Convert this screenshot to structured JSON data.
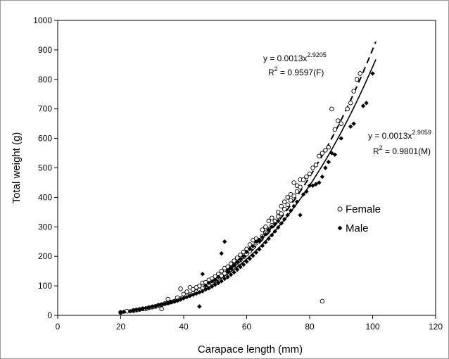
{
  "chart_data": {
    "type": "scatter",
    "title": "",
    "xlabel": "Carapace length (mm)",
    "ylabel": "Total weight (g)",
    "xlim": [
      0,
      120
    ],
    "ylim": [
      0,
      1000
    ],
    "xticks": [
      0,
      20,
      40,
      60,
      80,
      100,
      120
    ],
    "yticks": [
      0,
      100,
      200,
      300,
      400,
      500,
      600,
      700,
      800,
      900,
      1000
    ],
    "grid": false,
    "legend_position": "right",
    "series": [
      {
        "name": "Female",
        "marker": "open-circle",
        "color": "#000000",
        "trendline": {
          "a": 0.0013,
          "b": 2.9205,
          "style": "dashed"
        },
        "points": [
          [
            20,
            10
          ],
          [
            22,
            14
          ],
          [
            24,
            16
          ],
          [
            25,
            18
          ],
          [
            26,
            20
          ],
          [
            27,
            22
          ],
          [
            28,
            22
          ],
          [
            29,
            26
          ],
          [
            30,
            28
          ],
          [
            31,
            30
          ],
          [
            32,
            34
          ],
          [
            33,
            36
          ],
          [
            33,
            22
          ],
          [
            34,
            40
          ],
          [
            35,
            42
          ],
          [
            35,
            55
          ],
          [
            36,
            45
          ],
          [
            37,
            48
          ],
          [
            38,
            52
          ],
          [
            38,
            60
          ],
          [
            39,
            56
          ],
          [
            39,
            90
          ],
          [
            40,
            62
          ],
          [
            40,
            72
          ],
          [
            41,
            66
          ],
          [
            41,
            80
          ],
          [
            42,
            70
          ],
          [
            42,
            95
          ],
          [
            43,
            74
          ],
          [
            43,
            88
          ],
          [
            44,
            80
          ],
          [
            44,
            95
          ],
          [
            45,
            86
          ],
          [
            45,
            100
          ],
          [
            46,
            92
          ],
          [
            46,
            110
          ],
          [
            47,
            98
          ],
          [
            47,
            112
          ],
          [
            48,
            104
          ],
          [
            48,
            120
          ],
          [
            49,
            110
          ],
          [
            49,
            125
          ],
          [
            50,
            118
          ],
          [
            50,
            132
          ],
          [
            51,
            126
          ],
          [
            51,
            140
          ],
          [
            52,
            134
          ],
          [
            52,
            150
          ],
          [
            53,
            142
          ],
          [
            53,
            160
          ],
          [
            54,
            150
          ],
          [
            54,
            165
          ],
          [
            55,
            160
          ],
          [
            55,
            175
          ],
          [
            56,
            170
          ],
          [
            56,
            185
          ],
          [
            57,
            178
          ],
          [
            57,
            195
          ],
          [
            58,
            188
          ],
          [
            58,
            205
          ],
          [
            59,
            198
          ],
          [
            59,
            215
          ],
          [
            60,
            208
          ],
          [
            60,
            225
          ],
          [
            61,
            218
          ],
          [
            61,
            240
          ],
          [
            62,
            230
          ],
          [
            62,
            255
          ],
          [
            63,
            245
          ],
          [
            63,
            260
          ],
          [
            64,
            255
          ],
          [
            65,
            268
          ],
          [
            65,
            290
          ],
          [
            66,
            280
          ],
          [
            66,
            300
          ],
          [
            67,
            292
          ],
          [
            67,
            320
          ],
          [
            68,
            305
          ],
          [
            68,
            330
          ],
          [
            69,
            320
          ],
          [
            70,
            335
          ],
          [
            70,
            350
          ],
          [
            71,
            345
          ],
          [
            71,
            370
          ],
          [
            72,
            360
          ],
          [
            72,
            385
          ],
          [
            73,
            375
          ],
          [
            73,
            400
          ],
          [
            74,
            390
          ],
          [
            74,
            410
          ],
          [
            75,
            405
          ],
          [
            75,
            450
          ],
          [
            76,
            420
          ],
          [
            76,
            440
          ],
          [
            77,
            435
          ],
          [
            77,
            460
          ],
          [
            78,
            460
          ],
          [
            79,
            470
          ],
          [
            80,
            480
          ],
          [
            81,
            500
          ],
          [
            82,
            510
          ],
          [
            83,
            540
          ],
          [
            84,
            550
          ],
          [
            85,
            560
          ],
          [
            86,
            570
          ],
          [
            87,
            700
          ],
          [
            88,
            630
          ],
          [
            89,
            660
          ],
          [
            90,
            650
          ],
          [
            92,
            700
          ],
          [
            93,
            720
          ],
          [
            94,
            760
          ],
          [
            95,
            800
          ],
          [
            96,
            820
          ],
          [
            84,
            48
          ]
        ]
      },
      {
        "name": "Male",
        "marker": "filled-diamond",
        "color": "#000000",
        "trendline": {
          "a": 0.0013,
          "b": 2.9059,
          "style": "solid"
        },
        "points": [
          [
            20,
            10
          ],
          [
            21,
            12
          ],
          [
            23,
            14
          ],
          [
            24,
            17
          ],
          [
            25,
            19
          ],
          [
            26,
            20
          ],
          [
            27,
            23
          ],
          [
            28,
            25
          ],
          [
            29,
            27
          ],
          [
            30,
            30
          ],
          [
            31,
            31
          ],
          [
            32,
            35
          ],
          [
            33,
            37
          ],
          [
            34,
            39
          ],
          [
            35,
            42
          ],
          [
            36,
            45
          ],
          [
            37,
            47
          ],
          [
            38,
            50
          ],
          [
            39,
            54
          ],
          [
            40,
            58
          ],
          [
            41,
            62
          ],
          [
            42,
            66
          ],
          [
            43,
            70
          ],
          [
            44,
            74
          ],
          [
            45,
            30
          ],
          [
            45,
            78
          ],
          [
            46,
            82
          ],
          [
            46,
            140
          ],
          [
            47,
            88
          ],
          [
            47,
            100
          ],
          [
            48,
            92
          ],
          [
            48,
            110
          ],
          [
            49,
            98
          ],
          [
            49,
            115
          ],
          [
            50,
            104
          ],
          [
            50,
            120
          ],
          [
            51,
            110
          ],
          [
            51,
            130
          ],
          [
            52,
            116
          ],
          [
            52,
            210
          ],
          [
            53,
            124
          ],
          [
            53,
            250
          ],
          [
            54,
            130
          ],
          [
            54,
            150
          ],
          [
            55,
            138
          ],
          [
            55,
            160
          ],
          [
            56,
            146
          ],
          [
            56,
            170
          ],
          [
            57,
            155
          ],
          [
            57,
            180
          ],
          [
            58,
            164
          ],
          [
            58,
            190
          ],
          [
            59,
            172
          ],
          [
            59,
            200
          ],
          [
            60,
            182
          ],
          [
            60,
            215
          ],
          [
            61,
            192
          ],
          [
            61,
            225
          ],
          [
            62,
            202
          ],
          [
            62,
            235
          ],
          [
            63,
            213
          ],
          [
            63,
            250
          ],
          [
            64,
            224
          ],
          [
            64,
            255
          ],
          [
            65,
            236
          ],
          [
            65,
            265
          ],
          [
            66,
            248
          ],
          [
            66,
            275
          ],
          [
            67,
            260
          ],
          [
            67,
            290
          ],
          [
            68,
            272
          ],
          [
            68,
            300
          ],
          [
            69,
            285
          ],
          [
            69,
            310
          ],
          [
            70,
            298
          ],
          [
            70,
            320
          ],
          [
            71,
            312
          ],
          [
            72,
            326
          ],
          [
            73,
            340
          ],
          [
            74,
            355
          ],
          [
            75,
            370
          ],
          [
            76,
            385
          ],
          [
            77,
            340
          ],
          [
            78,
            410
          ],
          [
            79,
            420
          ],
          [
            80,
            440
          ],
          [
            81,
            440
          ],
          [
            82,
            445
          ],
          [
            83,
            450
          ],
          [
            84,
            470
          ],
          [
            85,
            500
          ],
          [
            86,
            520
          ],
          [
            87,
            550
          ],
          [
            88,
            545
          ],
          [
            90,
            600
          ],
          [
            93,
            640
          ],
          [
            94,
            650
          ],
          [
            97,
            710
          ],
          [
            98,
            720
          ],
          [
            100,
            820
          ]
        ]
      }
    ],
    "annotations": [
      {
        "id": "female-eq",
        "text": "y = 0.0013x",
        "exponent": "2.9205"
      },
      {
        "id": "female-r2",
        "text": "R",
        "sup": "2",
        "rest": " = 0.9597(F)"
      },
      {
        "id": "male-eq",
        "text": "y = 0.0013x",
        "exponent": "2.9059"
      },
      {
        "id": "male-r2",
        "text": "R",
        "sup": "2",
        "rest": " = 0.9801(M)"
      }
    ]
  }
}
